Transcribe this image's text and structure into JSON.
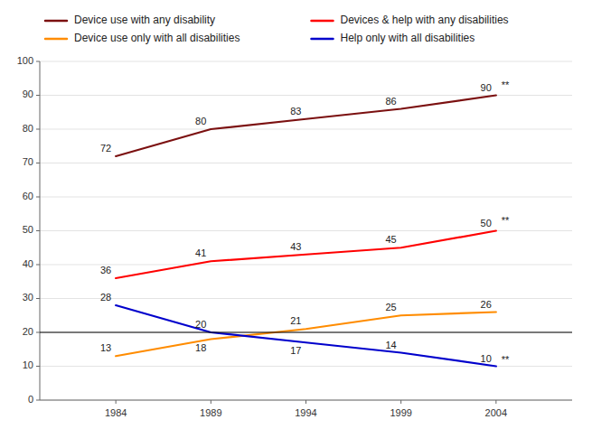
{
  "chart_data": {
    "type": "line",
    "x": [
      1984,
      1989,
      1994,
      1999,
      2004
    ],
    "series": [
      {
        "name": "Device use with any disability",
        "color": "#7B1010",
        "values": [
          72,
          80,
          83,
          86,
          90
        ]
      },
      {
        "name": "Devices & help with any disabilities",
        "color": "#FF0000",
        "values": [
          36,
          41,
          43,
          45,
          50
        ]
      },
      {
        "name": "Device use only with all disabilities",
        "color": "#FF8C00",
        "values": [
          13,
          18,
          21,
          25,
          26
        ]
      },
      {
        "name": "Help only with all disabilities",
        "color": "#0000CC",
        "values": [
          28,
          20,
          17,
          14,
          10
        ]
      }
    ],
    "xlim": [
      1980,
      2008
    ],
    "xticks": [
      1984,
      1989,
      1994,
      1999,
      2004
    ],
    "ylim": [
      0,
      100
    ],
    "yticks": [
      0,
      10,
      20,
      30,
      40,
      50,
      60,
      70,
      80,
      90,
      100
    ],
    "hlines": [
      {
        "y": 20,
        "color": "#000000"
      }
    ],
    "annotations": [
      {
        "text": "**",
        "x": 2004,
        "y": 92
      },
      {
        "text": "**",
        "x": 2004,
        "y": 52
      },
      {
        "text": "**",
        "x": 2004,
        "y": 11
      }
    ],
    "grid": true,
    "data_labels": true,
    "legend": "top"
  }
}
